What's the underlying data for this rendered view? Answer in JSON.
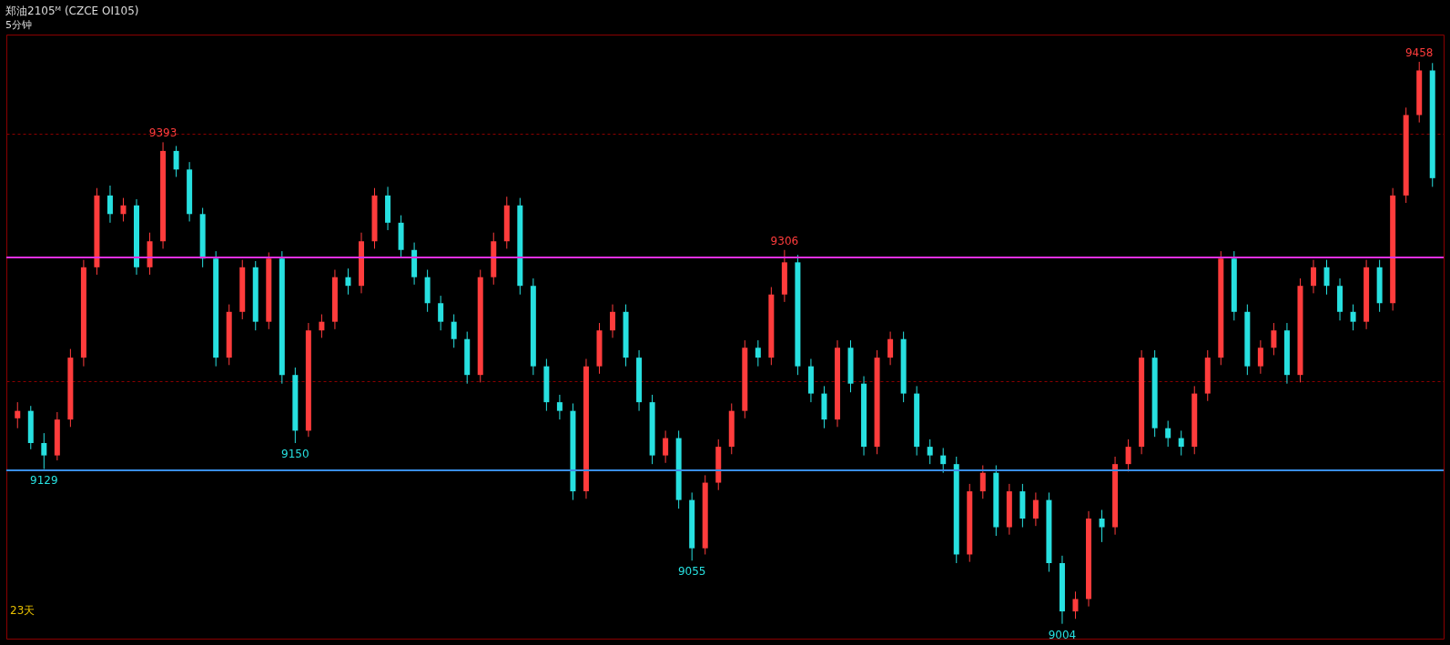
{
  "chart_data": {
    "type": "candlestick",
    "title": "郑油2105ᴹ (CZCE OI105)",
    "subtitle": "5分钟",
    "categories": [
      null,
      null,
      null,
      null,
      null,
      null,
      null,
      null,
      null,
      null,
      null,
      null,
      null,
      null,
      null,
      null,
      null,
      null,
      null,
      null,
      null,
      null,
      null,
      null,
      null,
      null,
      null,
      null,
      null,
      null,
      null,
      null,
      null,
      null,
      null,
      null,
      null,
      null,
      null,
      null,
      null,
      null,
      null,
      null,
      null,
      null,
      null,
      null,
      null,
      null,
      null,
      null,
      null,
      null,
      null,
      null,
      null,
      null,
      null,
      null,
      null,
      null,
      null,
      null,
      null,
      null,
      null,
      null,
      null,
      null,
      null,
      null,
      null,
      null,
      null,
      null,
      null,
      null,
      null,
      null,
      null,
      null,
      null,
      null,
      null,
      null,
      null,
      null,
      null,
      null,
      null,
      null,
      null,
      null,
      null,
      null,
      null,
      null,
      null,
      null,
      null,
      null,
      null,
      null,
      null,
      null,
      null,
      null
    ],
    "ohlc": [
      [
        9170,
        9183,
        9162,
        9176
      ],
      [
        9176,
        9180,
        9145,
        9150
      ],
      [
        9150,
        9158,
        9129,
        9140
      ],
      [
        9140,
        9175,
        9136,
        9169
      ],
      [
        9169,
        9226,
        9163,
        9219
      ],
      [
        9219,
        9298,
        9212,
        9292
      ],
      [
        9292,
        9356,
        9286,
        9350
      ],
      [
        9350,
        9358,
        9328,
        9335
      ],
      [
        9335,
        9348,
        9329,
        9342
      ],
      [
        9342,
        9347,
        9286,
        9292
      ],
      [
        9292,
        9320,
        9286,
        9313
      ],
      [
        9313,
        9393,
        9307,
        9386
      ],
      [
        9386,
        9390,
        9365,
        9371
      ],
      [
        9371,
        9377,
        9329,
        9335
      ],
      [
        9335,
        9340,
        9292,
        9299
      ],
      [
        9299,
        9305,
        9212,
        9219
      ],
      [
        9219,
        9262,
        9213,
        9256
      ],
      [
        9256,
        9298,
        9250,
        9292
      ],
      [
        9292,
        9297,
        9241,
        9248
      ],
      [
        9248,
        9304,
        9242,
        9299
      ],
      [
        9299,
        9305,
        9198,
        9205
      ],
      [
        9205,
        9211,
        9150,
        9160
      ],
      [
        9160,
        9247,
        9155,
        9241
      ],
      [
        9241,
        9254,
        9235,
        9248
      ],
      [
        9248,
        9290,
        9242,
        9284
      ],
      [
        9284,
        9291,
        9270,
        9277
      ],
      [
        9277,
        9320,
        9271,
        9313
      ],
      [
        9313,
        9356,
        9307,
        9350
      ],
      [
        9350,
        9357,
        9322,
        9328
      ],
      [
        9328,
        9334,
        9300,
        9306
      ],
      [
        9306,
        9312,
        9278,
        9284
      ],
      [
        9284,
        9290,
        9256,
        9263
      ],
      [
        9263,
        9269,
        9241,
        9248
      ],
      [
        9248,
        9254,
        9227,
        9234
      ],
      [
        9234,
        9240,
        9198,
        9205
      ],
      [
        9205,
        9290,
        9199,
        9284
      ],
      [
        9284,
        9320,
        9278,
        9313
      ],
      [
        9313,
        9349,
        9307,
        9342
      ],
      [
        9342,
        9348,
        9270,
        9277
      ],
      [
        9277,
        9283,
        9205,
        9212
      ],
      [
        9212,
        9218,
        9176,
        9183
      ],
      [
        9183,
        9189,
        9169,
        9176
      ],
      [
        9176,
        9182,
        9104,
        9111
      ],
      [
        9111,
        9218,
        9105,
        9212
      ],
      [
        9212,
        9247,
        9206,
        9241
      ],
      [
        9241,
        9262,
        9235,
        9256
      ],
      [
        9256,
        9262,
        9212,
        9219
      ],
      [
        9219,
        9225,
        9176,
        9183
      ],
      [
        9183,
        9189,
        9133,
        9140
      ],
      [
        9140,
        9160,
        9134,
        9154
      ],
      [
        9154,
        9160,
        9097,
        9104
      ],
      [
        9104,
        9110,
        9055,
        9065
      ],
      [
        9065,
        9124,
        9060,
        9118
      ],
      [
        9118,
        9153,
        9112,
        9147
      ],
      [
        9147,
        9182,
        9141,
        9176
      ],
      [
        9176,
        9233,
        9170,
        9227
      ],
      [
        9227,
        9233,
        9212,
        9219
      ],
      [
        9219,
        9276,
        9213,
        9270
      ],
      [
        9270,
        9306,
        9264,
        9296
      ],
      [
        9296,
        9302,
        9205,
        9212
      ],
      [
        9212,
        9218,
        9183,
        9190
      ],
      [
        9190,
        9196,
        9162,
        9169
      ],
      [
        9169,
        9233,
        9163,
        9227
      ],
      [
        9227,
        9233,
        9191,
        9198
      ],
      [
        9198,
        9204,
        9140,
        9147
      ],
      [
        9147,
        9225,
        9141,
        9219
      ],
      [
        9219,
        9240,
        9213,
        9234
      ],
      [
        9234,
        9240,
        9183,
        9190
      ],
      [
        9190,
        9196,
        9140,
        9147
      ],
      [
        9147,
        9153,
        9133,
        9140
      ],
      [
        9140,
        9146,
        9126,
        9133
      ],
      [
        9133,
        9139,
        9053,
        9060
      ],
      [
        9060,
        9117,
        9054,
        9111
      ],
      [
        9111,
        9132,
        9105,
        9126
      ],
      [
        9126,
        9132,
        9075,
        9082
      ],
      [
        9082,
        9117,
        9076,
        9111
      ],
      [
        9111,
        9117,
        9082,
        9089
      ],
      [
        9089,
        9110,
        9083,
        9104
      ],
      [
        9104,
        9110,
        9046,
        9053
      ],
      [
        9053,
        9059,
        9004,
        9014
      ],
      [
        9014,
        9030,
        9008,
        9024
      ],
      [
        9024,
        9095,
        9018,
        9089
      ],
      [
        9089,
        9096,
        9070,
        9082
      ],
      [
        9082,
        9139,
        9076,
        9133
      ],
      [
        9133,
        9153,
        9127,
        9147
      ],
      [
        9147,
        9225,
        9141,
        9219
      ],
      [
        9219,
        9225,
        9155,
        9162
      ],
      [
        9162,
        9168,
        9147,
        9154
      ],
      [
        9154,
        9160,
        9140,
        9147
      ],
      [
        9147,
        9196,
        9141,
        9190
      ],
      [
        9190,
        9225,
        9184,
        9219
      ],
      [
        9219,
        9305,
        9213,
        9299
      ],
      [
        9299,
        9305,
        9249,
        9256
      ],
      [
        9256,
        9262,
        9205,
        9212
      ],
      [
        9212,
        9233,
        9206,
        9227
      ],
      [
        9227,
        9247,
        9221,
        9241
      ],
      [
        9241,
        9247,
        9198,
        9205
      ],
      [
        9205,
        9283,
        9199,
        9277
      ],
      [
        9277,
        9298,
        9271,
        9292
      ],
      [
        9292,
        9298,
        9270,
        9277
      ],
      [
        9277,
        9283,
        9249,
        9256
      ],
      [
        9256,
        9262,
        9241,
        9248
      ],
      [
        9248,
        9298,
        9242,
        9292
      ],
      [
        9292,
        9298,
        9256,
        9263
      ],
      [
        9263,
        9356,
        9257,
        9350
      ],
      [
        9350,
        9421,
        9344,
        9415
      ],
      [
        9415,
        9458,
        9409,
        9451
      ],
      [
        9451,
        9457,
        9357,
        9364
      ]
    ],
    "ylim": [
      8992,
      9480
    ],
    "yticks": [
      {
        "value": 9200,
        "label": null
      },
      {
        "value": 9400,
        "label": null
      }
    ],
    "grid": "y",
    "tick_labels": false,
    "ref_lines": [
      {
        "axis": "y",
        "value": 9128,
        "label": null,
        "color": "#3a8ee6"
      },
      {
        "axis": "y",
        "value": 9300,
        "label": null,
        "color": "#e030e0"
      }
    ],
    "annotations": [
      {
        "text": "9129",
        "y": 9129
      },
      {
        "text": "9393",
        "y": 9393
      },
      {
        "text": "9150",
        "y": 9150
      },
      {
        "text": "9306",
        "y": 9306
      },
      {
        "text": "9055",
        "y": 9055
      },
      {
        "text": "9004",
        "y": 9004
      },
      {
        "text": "9458",
        "y": 9458
      },
      "23天"
    ]
  }
}
